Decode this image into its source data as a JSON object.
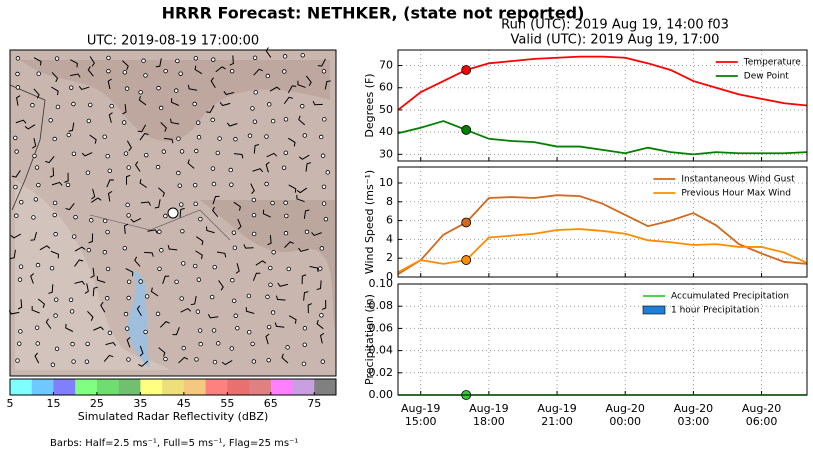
{
  "title": "HRRR Forecast: NETHKER, (state not reported)",
  "run_label": "Run (UTC): 2019 Aug 19, 14:00 f03",
  "valid_label": "Valid (UTC): 2019 Aug 19, 17:00",
  "map_panel": {
    "title": "UTC: 2019-08-19 17:00:00",
    "footnote": "Barbs: Half=2.5 ms⁻¹, Full=5 ms⁻¹, Flag=25 ms⁻¹",
    "colorbar": {
      "label": "Simulated Radar Reflectivity (dBZ)",
      "xlim": [
        5,
        80
      ],
      "xticks": [
        5,
        15,
        25,
        35,
        45,
        55,
        65,
        75
      ],
      "colors": [
        "#80ffff",
        "#6fc8ff",
        "#8080ff",
        "#80ff80",
        "#70dd70",
        "#70c070",
        "#ffff80",
        "#ede07a",
        "#f5c880",
        "#ff8080",
        "#e87070",
        "#e08080",
        "#ff80ff",
        "#c8a0e0",
        "#808080"
      ]
    }
  },
  "chart_data": [
    {
      "type": "line",
      "ylabel": "Degrees (F)",
      "grid": true,
      "legend": "upper right",
      "highlight": "Aug-19 17:00",
      "x": [
        "Aug-19 14:00",
        "Aug-19 15:00",
        "Aug-19 16:00",
        "Aug-19 17:00",
        "Aug-19 18:00",
        "Aug-19 19:00",
        "Aug-19 20:00",
        "Aug-19 21:00",
        "Aug-19 22:00",
        "Aug-19 23:00",
        "Aug-20 00:00",
        "Aug-20 01:00",
        "Aug-20 02:00",
        "Aug-20 03:00",
        "Aug-20 04:00",
        "Aug-20 05:00",
        "Aug-20 06:00",
        "Aug-20 07:00",
        "Aug-20 08:00"
      ],
      "ylim": [
        27,
        77
      ],
      "yticks": [
        30,
        40,
        50,
        60,
        70
      ],
      "series": [
        {
          "name": "Temperature",
          "color": "#ff0000",
          "values": [
            50,
            58,
            63,
            68,
            71,
            72,
            73,
            73.5,
            74,
            74,
            73.5,
            71,
            68,
            63,
            60,
            57,
            55,
            53,
            52
          ]
        },
        {
          "name": "Dew Point",
          "color": "#008000",
          "values": [
            39.5,
            42,
            45,
            41,
            37,
            36,
            35.5,
            33.5,
            33.5,
            32,
            30.5,
            33,
            31,
            30,
            31,
            30.5,
            30.5,
            30.5,
            31
          ]
        }
      ]
    },
    {
      "type": "line",
      "ylabel": "Wind Speed (ms⁻¹)",
      "grid": true,
      "legend": "upper right",
      "highlight": "Aug-19 17:00",
      "x": [
        "Aug-19 14:00",
        "Aug-19 15:00",
        "Aug-19 16:00",
        "Aug-19 17:00",
        "Aug-19 18:00",
        "Aug-19 19:00",
        "Aug-19 20:00",
        "Aug-19 21:00",
        "Aug-19 22:00",
        "Aug-19 23:00",
        "Aug-20 00:00",
        "Aug-20 01:00",
        "Aug-20 02:00",
        "Aug-20 03:00",
        "Aug-20 04:00",
        "Aug-20 05:00",
        "Aug-20 06:00",
        "Aug-20 07:00",
        "Aug-20 08:00"
      ],
      "ylim": [
        0,
        11.7
      ],
      "yticks": [
        0,
        2,
        4,
        6,
        8,
        10
      ],
      "series": [
        {
          "name": "Instantaneous Wind Gust",
          "color": "#d2691e",
          "values": [
            0.3,
            1.8,
            4.5,
            5.8,
            8.4,
            8.5,
            8.4,
            8.7,
            8.6,
            7.8,
            6.6,
            5.4,
            6.0,
            6.8,
            5.5,
            3.5,
            2.5,
            1.6,
            1.4
          ]
        },
        {
          "name": "Previous Hour Max Wind",
          "color": "#ff8c00",
          "values": [
            0.5,
            1.8,
            1.4,
            1.8,
            4.2,
            4.4,
            4.6,
            5.0,
            5.1,
            4.9,
            4.6,
            3.9,
            3.7,
            3.4,
            3.5,
            3.2,
            3.2,
            2.6,
            1.5
          ]
        }
      ]
    },
    {
      "type": "line",
      "ylabel": "Precipitation (in)",
      "grid": true,
      "legend": "upper right",
      "highlight": "Aug-19 17:00",
      "x": [
        "Aug-19 14:00",
        "Aug-19 15:00",
        "Aug-19 16:00",
        "Aug-19 17:00",
        "Aug-19 18:00",
        "Aug-19 19:00",
        "Aug-19 20:00",
        "Aug-19 21:00",
        "Aug-19 22:00",
        "Aug-19 23:00",
        "Aug-20 00:00",
        "Aug-20 01:00",
        "Aug-20 02:00",
        "Aug-20 03:00",
        "Aug-20 04:00",
        "Aug-20 05:00",
        "Aug-20 06:00",
        "Aug-20 07:00",
        "Aug-20 08:00"
      ],
      "ylim": [
        0,
        0.1
      ],
      "yticks": [
        {
          "value": 0,
          "label": "0.00"
        },
        {
          "value": 0.02,
          "label": "0.02"
        },
        {
          "value": 0.04,
          "label": "0.04"
        },
        {
          "value": 0.06,
          "label": "0.06"
        },
        {
          "value": 0.08,
          "label": "0.08"
        },
        {
          "value": 0.1,
          "label": "0.10"
        }
      ],
      "xticks": [
        "Aug-19 15:00",
        "Aug-19 18:00",
        "Aug-19 21:00",
        "Aug-20 00:00",
        "Aug-20 03:00",
        "Aug-20 06:00"
      ],
      "series": [
        {
          "name": "Accumulated Precipitation",
          "color": "#32cd32",
          "values": [
            0,
            0,
            0,
            0,
            0,
            0,
            0,
            0,
            0,
            0,
            0,
            0,
            0,
            0,
            0,
            0,
            0,
            0,
            0
          ]
        },
        {
          "name": "1 hour Precipitation",
          "color": "#1e7fd8",
          "style": "bar",
          "values": [
            0,
            0,
            0,
            0,
            0,
            0,
            0,
            0,
            0,
            0,
            0,
            0,
            0,
            0,
            0,
            0,
            0,
            0,
            0
          ]
        }
      ]
    }
  ]
}
